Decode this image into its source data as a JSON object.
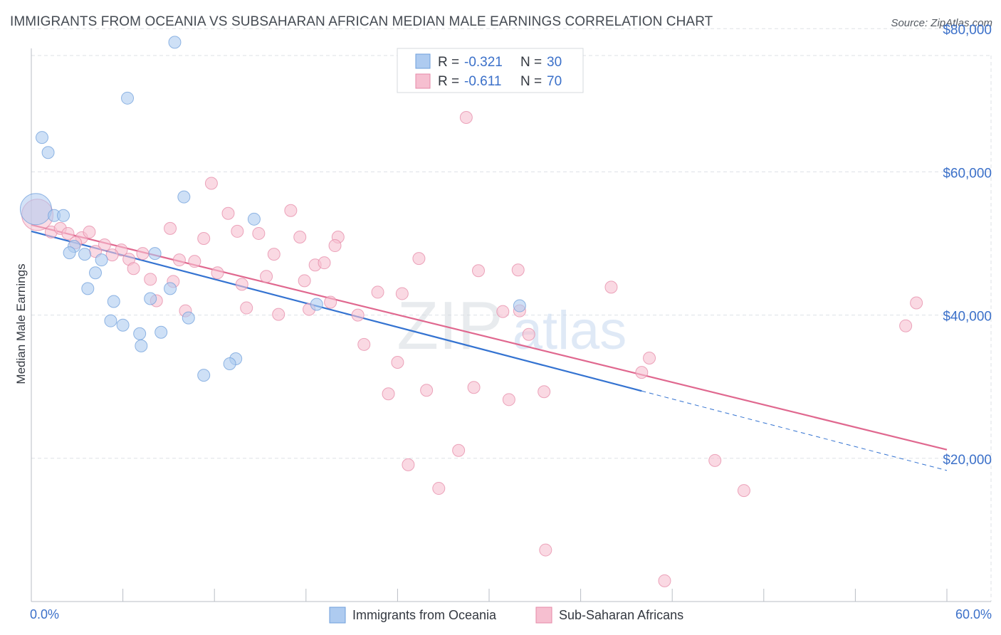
{
  "header": {
    "title": "IMMIGRANTS FROM OCEANIA VS SUBSAHARAN AFRICAN MEDIAN MALE EARNINGS CORRELATION CHART",
    "source": "Source: ZipAtlas.com"
  },
  "watermark": {
    "zip": "ZIP",
    "atlas": "atlas"
  },
  "stats_box": {
    "rows": [
      {
        "r_label": "R =",
        "r_value": "-0.321",
        "n_label": "N =",
        "n_value": "30"
      },
      {
        "r_label": "R =",
        "r_value": "-0.611",
        "n_label": "N =",
        "n_value": "70"
      }
    ]
  },
  "colors": {
    "blue_fill": "#aecbf0",
    "blue_stroke": "#6f9fdb",
    "blue_line": "#3473d1",
    "pink_fill": "#f6bfd0",
    "pink_stroke": "#e58aa7",
    "pink_line": "#e0688f",
    "value_text": "#3b70c9",
    "grid": "#dde1e6"
  },
  "chart_data": {
    "type": "scatter",
    "title": "IMMIGRANTS FROM OCEANIA VS SUBSAHARAN AFRICAN MEDIAN MALE EARNINGS CORRELATION CHART",
    "xlabel": "",
    "ylabel": "Median Male Earnings",
    "xlim": [
      0,
      60
    ],
    "ylim": [
      0,
      84000
    ],
    "x_tick_labels": [
      "0.0%",
      "60.0%"
    ],
    "y_ticks": [
      20000,
      40000,
      60000,
      80000
    ],
    "y_tick_labels": [
      "$20,000",
      "$40,000",
      "$60,000",
      "$80,000"
    ],
    "grid": true,
    "legend_position": "bottom-center",
    "series": [
      {
        "name": "Immigrants from Oceania",
        "color": "#aecbf0",
        "r": -0.321,
        "n": 30,
        "trend": {
          "x": [
            0,
            40
          ],
          "y": [
            51700,
            29400
          ]
        },
        "trend_extension": {
          "x": [
            40,
            60
          ],
          "y": [
            29400,
            18300
          ]
        },
        "points": [
          {
            "x": 0.3,
            "y": 54800,
            "big": true
          },
          {
            "x": 0.7,
            "y": 64800
          },
          {
            "x": 1.1,
            "y": 62700
          },
          {
            "x": 9.4,
            "y": 78100
          },
          {
            "x": 6.3,
            "y": 70300
          },
          {
            "x": 10.0,
            "y": 56500
          },
          {
            "x": 1.5,
            "y": 53900
          },
          {
            "x": 2.1,
            "y": 53900
          },
          {
            "x": 14.6,
            "y": 53400
          },
          {
            "x": 2.8,
            "y": 49600
          },
          {
            "x": 2.5,
            "y": 48700
          },
          {
            "x": 3.5,
            "y": 48500
          },
          {
            "x": 4.6,
            "y": 47700
          },
          {
            "x": 8.1,
            "y": 48600
          },
          {
            "x": 4.2,
            "y": 45900
          },
          {
            "x": 3.7,
            "y": 43700
          },
          {
            "x": 5.4,
            "y": 41900
          },
          {
            "x": 7.8,
            "y": 42300
          },
          {
            "x": 9.1,
            "y": 43700
          },
          {
            "x": 10.3,
            "y": 39600
          },
          {
            "x": 5.2,
            "y": 39200
          },
          {
            "x": 6.0,
            "y": 38600
          },
          {
            "x": 7.1,
            "y": 37400
          },
          {
            "x": 8.5,
            "y": 37600
          },
          {
            "x": 7.2,
            "y": 35700
          },
          {
            "x": 18.7,
            "y": 41500
          },
          {
            "x": 32.0,
            "y": 41300
          },
          {
            "x": 13.4,
            "y": 33900
          },
          {
            "x": 13.0,
            "y": 33200
          },
          {
            "x": 11.3,
            "y": 31600
          }
        ]
      },
      {
        "name": "Sub-Saharan Africans",
        "color": "#f6bfd0",
        "r": -0.611,
        "n": 70,
        "trend": {
          "x": [
            0,
            60
          ],
          "y": [
            52600,
            21200
          ]
        },
        "points": [
          {
            "x": 0.4,
            "y": 54000,
            "big": true
          },
          {
            "x": 1.3,
            "y": 51600
          },
          {
            "x": 1.9,
            "y": 52100
          },
          {
            "x": 2.4,
            "y": 51400
          },
          {
            "x": 3.3,
            "y": 50800
          },
          {
            "x": 3.8,
            "y": 51600
          },
          {
            "x": 2.9,
            "y": 50100
          },
          {
            "x": 4.8,
            "y": 49800
          },
          {
            "x": 5.9,
            "y": 49100
          },
          {
            "x": 4.2,
            "y": 48900
          },
          {
            "x": 5.3,
            "y": 48400
          },
          {
            "x": 6.4,
            "y": 47800
          },
          {
            "x": 7.3,
            "y": 48600
          },
          {
            "x": 9.1,
            "y": 52100
          },
          {
            "x": 11.3,
            "y": 50700
          },
          {
            "x": 11.8,
            "y": 58400
          },
          {
            "x": 12.9,
            "y": 54200
          },
          {
            "x": 13.5,
            "y": 51700
          },
          {
            "x": 14.9,
            "y": 51400
          },
          {
            "x": 17.0,
            "y": 54600
          },
          {
            "x": 17.6,
            "y": 50900
          },
          {
            "x": 20.1,
            "y": 50900
          },
          {
            "x": 19.9,
            "y": 49700
          },
          {
            "x": 28.5,
            "y": 67600
          },
          {
            "x": 9.7,
            "y": 47700
          },
          {
            "x": 10.7,
            "y": 47500
          },
          {
            "x": 6.7,
            "y": 46500
          },
          {
            "x": 7.8,
            "y": 45000
          },
          {
            "x": 9.3,
            "y": 44700
          },
          {
            "x": 12.2,
            "y": 45900
          },
          {
            "x": 13.8,
            "y": 44300
          },
          {
            "x": 15.4,
            "y": 45400
          },
          {
            "x": 15.9,
            "y": 48500
          },
          {
            "x": 17.9,
            "y": 44800
          },
          {
            "x": 18.6,
            "y": 47000
          },
          {
            "x": 19.2,
            "y": 47300
          },
          {
            "x": 8.2,
            "y": 42000
          },
          {
            "x": 10.1,
            "y": 40600
          },
          {
            "x": 14.1,
            "y": 41000
          },
          {
            "x": 16.2,
            "y": 40100
          },
          {
            "x": 18.2,
            "y": 40800
          },
          {
            "x": 19.6,
            "y": 41800
          },
          {
            "x": 21.4,
            "y": 40000
          },
          {
            "x": 22.7,
            "y": 43200
          },
          {
            "x": 24.3,
            "y": 43000
          },
          {
            "x": 25.4,
            "y": 47900
          },
          {
            "x": 29.3,
            "y": 46200
          },
          {
            "x": 31.9,
            "y": 46300
          },
          {
            "x": 32.0,
            "y": 40600
          },
          {
            "x": 32.6,
            "y": 37300
          },
          {
            "x": 38.0,
            "y": 43900
          },
          {
            "x": 21.8,
            "y": 35900
          },
          {
            "x": 24.0,
            "y": 33400
          },
          {
            "x": 40.5,
            "y": 34000
          },
          {
            "x": 40.0,
            "y": 32000
          },
          {
            "x": 29.0,
            "y": 29900
          },
          {
            "x": 33.6,
            "y": 29300
          },
          {
            "x": 23.4,
            "y": 29000
          },
          {
            "x": 25.9,
            "y": 29500
          },
          {
            "x": 31.3,
            "y": 28200
          },
          {
            "x": 28.0,
            "y": 21100
          },
          {
            "x": 24.7,
            "y": 19100
          },
          {
            "x": 26.7,
            "y": 15800
          },
          {
            "x": 44.8,
            "y": 19700
          },
          {
            "x": 46.7,
            "y": 15500
          },
          {
            "x": 58.0,
            "y": 41700
          },
          {
            "x": 57.3,
            "y": 38500
          },
          {
            "x": 33.7,
            "y": 7200
          },
          {
            "x": 41.5,
            "y": 2900
          },
          {
            "x": 30.9,
            "y": 40500
          }
        ]
      }
    ]
  }
}
